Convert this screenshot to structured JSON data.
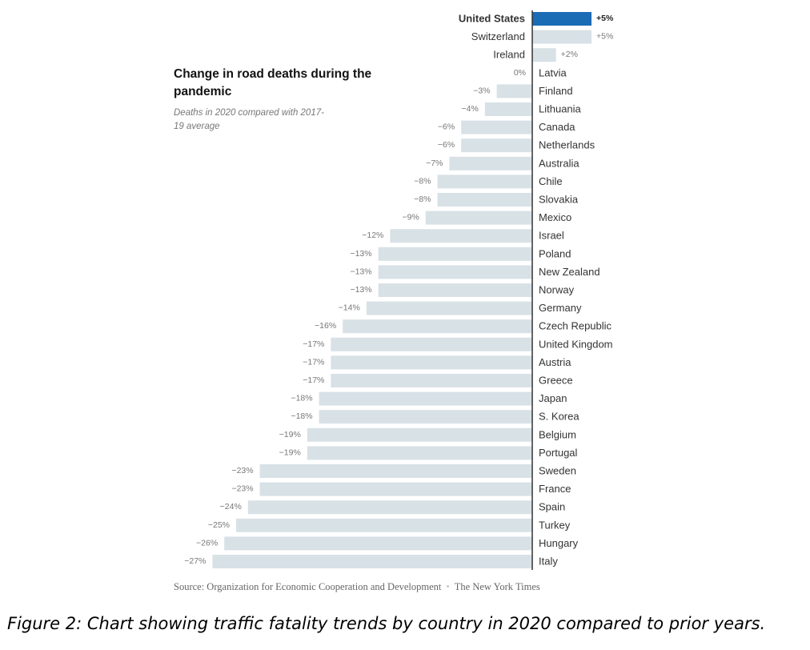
{
  "chart_data": {
    "type": "bar",
    "orientation": "horizontal",
    "title": "Change in road deaths during the pandemic",
    "subtitle": "Deaths in 2020 compared with 2017-19 average",
    "highlight": "United States",
    "categories": [
      "United States",
      "Switzerland",
      "Ireland",
      "Latvia",
      "Finland",
      "Lithuania",
      "Canada",
      "Netherlands",
      "Australia",
      "Chile",
      "Slovakia",
      "Mexico",
      "Israel",
      "Poland",
      "New Zealand",
      "Norway",
      "Germany",
      "Czech Republic",
      "United Kingdom",
      "Austria",
      "Greece",
      "Japan",
      "S. Korea",
      "Belgium",
      "Portugal",
      "Sweden",
      "France",
      "Spain",
      "Turkey",
      "Hungary",
      "Italy"
    ],
    "values": [
      5,
      5,
      2,
      0,
      -3,
      -4,
      -6,
      -6,
      -7,
      -8,
      -8,
      -9,
      -12,
      -13,
      -13,
      -13,
      -14,
      -16,
      -17,
      -17,
      -17,
      -18,
      -18,
      -19,
      -19,
      -23,
      -23,
      -24,
      -25,
      -26,
      -27
    ],
    "labels": [
      "+5%",
      "+5%",
      "+2%",
      "0%",
      "−3%",
      "−4%",
      "−6%",
      "−6%",
      "−7%",
      "−8%",
      "−8%",
      "−9%",
      "−12%",
      "−13%",
      "−13%",
      "−13%",
      "−14%",
      "−16%",
      "−17%",
      "−17%",
      "−17%",
      "−18%",
      "−18%",
      "−19%",
      "−19%",
      "−23%",
      "−23%",
      "−24%",
      "−25%",
      "−26%",
      "−27%"
    ],
    "unit": "%",
    "colors": {
      "bar": "#d8e1e6",
      "highlight": "#1a6cb5",
      "axis": "#333333",
      "label": "#777777",
      "country": "#333333"
    }
  },
  "source": {
    "text": "Source: Organization for Economic Cooperation and Development",
    "publisher": "The New York Times"
  },
  "caption": "Figure 2: Chart showing traffic fatality trends by country in 2020 compared to prior years."
}
